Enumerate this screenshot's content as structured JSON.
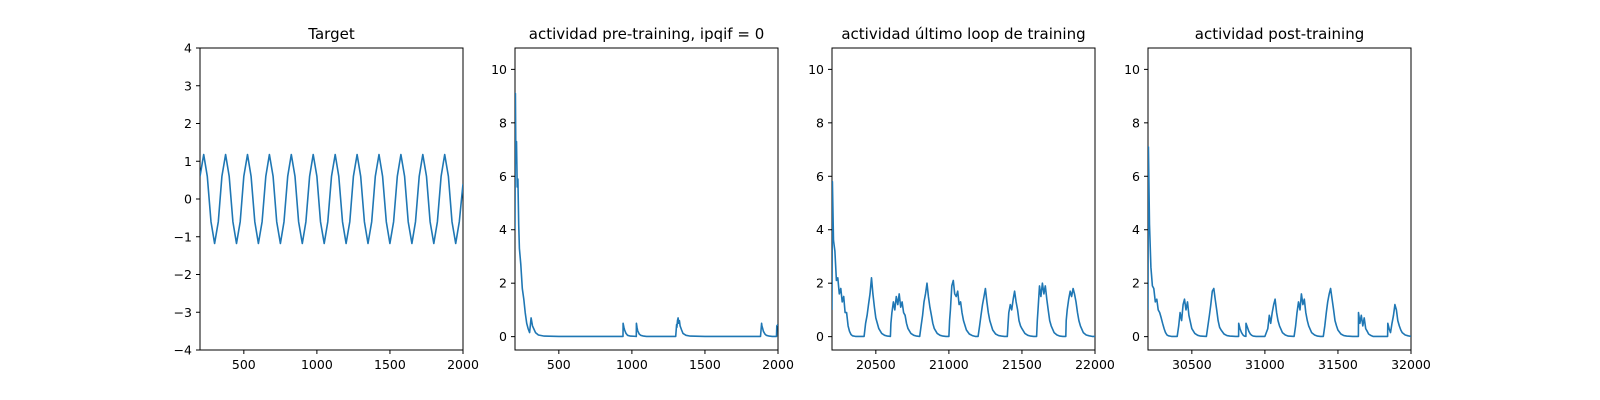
{
  "chart_data": [
    {
      "type": "line",
      "title": "Target",
      "xlim": [
        200,
        2000
      ],
      "ylim": [
        -4,
        4
      ],
      "xticks": [
        500,
        1000,
        1500,
        2000
      ],
      "yticks": [
        -4,
        -3,
        -2,
        -1,
        0,
        1,
        2,
        3,
        4
      ],
      "color": "#1f77b4",
      "series": [
        {
          "x": [
            200,
            225,
            250,
            275,
            300,
            325,
            350,
            375,
            400,
            425,
            450,
            475,
            500,
            525,
            550,
            575,
            600,
            625,
            650,
            675,
            700,
            725,
            750,
            775,
            800,
            825,
            850,
            875,
            900,
            925,
            950,
            975,
            1000,
            1025,
            1050,
            1075,
            1100,
            1125,
            1150,
            1175,
            1200,
            1225,
            1250,
            1275,
            1300,
            1325,
            1350,
            1375,
            1400,
            1425,
            1450,
            1475,
            1500,
            1525,
            1550,
            1575,
            1600,
            1625,
            1650,
            1675,
            1700,
            1725,
            1750,
            1775,
            1800,
            1825,
            1850,
            1875,
            1900,
            1925,
            1950,
            1975,
            2000
          ],
          "y": [
            0.6,
            1.18,
            0.6,
            -0.6,
            -1.18,
            -0.6,
            0.6,
            1.18,
            0.6,
            -0.6,
            -1.18,
            -0.6,
            0.6,
            1.18,
            0.6,
            -0.6,
            -1.18,
            -0.6,
            0.6,
            1.18,
            0.6,
            -0.6,
            -1.18,
            -0.6,
            0.6,
            1.18,
            0.6,
            -0.6,
            -1.18,
            -0.6,
            0.6,
            1.18,
            0.6,
            -0.6,
            -1.18,
            -0.6,
            0.6,
            1.18,
            0.6,
            -0.6,
            -1.18,
            -0.6,
            0.6,
            1.18,
            0.6,
            -0.6,
            -1.18,
            -0.6,
            0.6,
            1.18,
            0.6,
            -0.6,
            -1.18,
            -0.6,
            0.6,
            1.18,
            0.6,
            -0.6,
            -1.18,
            -0.6,
            0.6,
            1.18,
            0.6,
            -0.6,
            -1.18,
            -0.6,
            0.6,
            1.18,
            0.6,
            -0.6,
            -1.18,
            -0.6,
            0.4
          ]
        }
      ]
    },
    {
      "type": "line",
      "title": "actividad pre-training, ipqif = 0",
      "xlim": [
        200,
        2000
      ],
      "ylim": [
        -0.5,
        10.8
      ],
      "xticks": [
        500,
        1000,
        1500,
        2000
      ],
      "yticks": [
        0,
        2,
        4,
        6,
        8,
        10
      ],
      "color": "#1f77b4",
      "series": [
        {
          "x": [
            200,
            203,
            206,
            210,
            215,
            220,
            225,
            230,
            240,
            250,
            260,
            270,
            280,
            290,
            300,
            310,
            320,
            340,
            360,
            400,
            500,
            600,
            700,
            800,
            900,
            939,
            940,
            945,
            950,
            960,
            970,
            990,
            1030,
            1031,
            1035,
            1040,
            1050,
            1060,
            1080,
            1100,
            1200,
            1300,
            1306,
            1308,
            1312,
            1316,
            1320,
            1325,
            1330,
            1340,
            1350,
            1370,
            1400,
            1500,
            1600,
            1700,
            1800,
            1880,
            1888,
            1890,
            1895,
            1900,
            1910,
            1920,
            1940,
            1960,
            1990,
            1992,
            2000
          ],
          "y": [
            4,
            9.1,
            6.5,
            7.3,
            5.6,
            5.9,
            4.2,
            3.3,
            2.7,
            1.8,
            1.4,
            0.9,
            0.5,
            0.3,
            0.15,
            0.7,
            0.4,
            0.15,
            0.06,
            0.02,
            0.01,
            0.01,
            0.01,
            0.01,
            0.01,
            0.01,
            0.5,
            0.35,
            0.25,
            0.12,
            0.05,
            0.02,
            0.01,
            0.5,
            0.35,
            0.22,
            0.1,
            0.05,
            0.02,
            0.01,
            0.01,
            0.01,
            0.45,
            0.35,
            0.6,
            0.7,
            0.5,
            0.6,
            0.4,
            0.25,
            0.12,
            0.05,
            0.02,
            0.01,
            0.01,
            0.01,
            0.01,
            0.01,
            0.5,
            0.4,
            0.3,
            0.2,
            0.1,
            0.05,
            0.02,
            0.01,
            0.01,
            0.4,
            0.45
          ]
        }
      ]
    },
    {
      "type": "line",
      "title": "actividad último loop de training",
      "xlim": [
        20200,
        22000
      ],
      "ylim": [
        -0.5,
        10.8
      ],
      "xticks": [
        20500,
        21000,
        21500,
        22000
      ],
      "yticks": [
        0,
        2,
        4,
        6,
        8,
        10
      ],
      "color": "#1f77b4",
      "series": [
        {
          "x": [
            20200,
            20203,
            20210,
            20220,
            20230,
            20240,
            20250,
            20260,
            20270,
            20280,
            20290,
            20300,
            20310,
            20320,
            20330,
            20340,
            20360,
            20380,
            20400,
            20420,
            20430,
            20440,
            20450,
            20460,
            20470,
            20480,
            20490,
            20500,
            20520,
            20540,
            20560,
            20580,
            20600,
            20603,
            20610,
            20620,
            20630,
            20640,
            20650,
            20660,
            20670,
            20680,
            20690,
            20700,
            20710,
            20720,
            20740,
            20760,
            20780,
            20800,
            20810,
            20820,
            20830,
            20840,
            20850,
            20860,
            20870,
            20880,
            20890,
            20900,
            20920,
            20940,
            20960,
            20980,
            21000,
            21005,
            21010,
            21020,
            21030,
            21040,
            21050,
            21060,
            21070,
            21080,
            21090,
            21100,
            21120,
            21140,
            21160,
            21180,
            21200,
            21210,
            21220,
            21230,
            21240,
            21250,
            21260,
            21270,
            21280,
            21300,
            21320,
            21340,
            21360,
            21380,
            21400,
            21405,
            21410,
            21420,
            21430,
            21440,
            21450,
            21460,
            21470,
            21480,
            21490,
            21500,
            21520,
            21540,
            21560,
            21580,
            21600,
            21605,
            21610,
            21620,
            21630,
            21640,
            21650,
            21660,
            21670,
            21680,
            21690,
            21700,
            21720,
            21740,
            21760,
            21780,
            21800,
            21803,
            21810,
            21820,
            21830,
            21840,
            21850,
            21860,
            21870,
            21880,
            21890,
            21900,
            21920,
            21940,
            21960,
            21980,
            22000
          ],
          "y": [
            1,
            5.8,
            3.6,
            3.2,
            2.1,
            2.2,
            1.6,
            1.8,
            1.3,
            1.5,
            0.9,
            0.9,
            0.4,
            0.2,
            0.08,
            0.03,
            0.01,
            0.01,
            0.01,
            0.01,
            0.5,
            0.8,
            1.2,
            1.6,
            2.2,
            1.6,
            1.1,
            0.7,
            0.3,
            0.12,
            0.05,
            0.02,
            0.01,
            0.5,
            0.9,
            1.3,
            1.0,
            1.5,
            1.2,
            1.6,
            1.1,
            1.3,
            0.9,
            0.8,
            0.5,
            0.3,
            0.12,
            0.05,
            0.02,
            0.01,
            0.4,
            0.8,
            1.3,
            1.6,
            2.0,
            1.5,
            1.1,
            0.8,
            0.5,
            0.3,
            0.12,
            0.05,
            0.02,
            0.01,
            0.01,
            0.6,
            1.0,
            1.9,
            2.1,
            1.6,
            1.5,
            1.7,
            1.2,
            1.3,
            0.9,
            0.6,
            0.25,
            0.1,
            0.04,
            0.01,
            0.01,
            0.4,
            0.8,
            1.2,
            1.5,
            1.8,
            1.3,
            0.9,
            0.6,
            0.25,
            0.1,
            0.04,
            0.02,
            0.01,
            0.01,
            0.5,
            0.9,
            1.2,
            1.0,
            1.4,
            1.7,
            1.3,
            1.0,
            0.6,
            0.4,
            0.3,
            0.12,
            0.05,
            0.02,
            0.01,
            0.01,
            0.6,
            1.0,
            1.9,
            1.5,
            2.0,
            1.6,
            1.9,
            1.4,
            1.0,
            0.6,
            0.4,
            0.15,
            0.06,
            0.02,
            0.01,
            0.01,
            0.6,
            1.0,
            1.4,
            1.7,
            1.5,
            1.8,
            1.6,
            1.3,
            0.9,
            0.6,
            0.4,
            0.15,
            0.06,
            0.03,
            0.01,
            0.01
          ]
        }
      ]
    },
    {
      "type": "line",
      "title": "actividad post-training",
      "xlim": [
        30200,
        32000
      ],
      "ylim": [
        -0.5,
        10.8
      ],
      "xticks": [
        30500,
        31000,
        31500,
        32000
      ],
      "yticks": [
        0,
        2,
        4,
        6,
        8,
        10
      ],
      "color": "#1f77b4",
      "series": [
        {
          "x": [
            30200,
            30203,
            30210,
            30220,
            30230,
            30240,
            30250,
            30260,
            30270,
            30280,
            30290,
            30300,
            30310,
            30320,
            30330,
            30340,
            30360,
            30380,
            30400,
            30410,
            30420,
            30430,
            30440,
            30450,
            30460,
            30470,
            30480,
            30500,
            30520,
            30540,
            30560,
            30600,
            30610,
            30620,
            30630,
            30640,
            30650,
            30660,
            30670,
            30680,
            30690,
            30700,
            30720,
            30740,
            30760,
            30800,
            30820,
            30821,
            30830,
            30840,
            30850,
            30860,
            30870,
            30871,
            30880,
            30890,
            30900,
            30910,
            30920,
            30940,
            30960,
            31000,
            31020,
            31030,
            31040,
            31050,
            31060,
            31070,
            31080,
            31090,
            31100,
            31120,
            31140,
            31160,
            31200,
            31210,
            31220,
            31230,
            31240,
            31250,
            31260,
            31270,
            31280,
            31290,
            31300,
            31320,
            31340,
            31360,
            31380,
            31400,
            31410,
            31420,
            31430,
            31440,
            31450,
            31460,
            31470,
            31480,
            31490,
            31500,
            31520,
            31540,
            31560,
            31600,
            31640,
            31641,
            31650,
            31660,
            31670,
            31680,
            31690,
            31700,
            31710,
            31720,
            31730,
            31740,
            31760,
            31780,
            31800,
            31820,
            31840,
            31841,
            31850,
            31860,
            31870,
            31880,
            31890,
            31900,
            31910,
            31920,
            31930,
            31940,
            31960,
            31980,
            32000
          ],
          "y": [
            1,
            7.1,
            4.2,
            2.6,
            1.9,
            1.8,
            1.3,
            1.4,
            1.0,
            0.9,
            0.7,
            0.5,
            0.3,
            0.15,
            0.06,
            0.03,
            0.01,
            0.01,
            0.01,
            0.4,
            0.9,
            0.6,
            1.2,
            1.4,
            1.0,
            1.3,
            0.8,
            0.3,
            0.12,
            0.05,
            0.02,
            0.01,
            0.4,
            0.8,
            1.2,
            1.7,
            1.8,
            1.4,
            1.0,
            0.6,
            0.35,
            0.25,
            0.1,
            0.04,
            0.02,
            0.01,
            0.01,
            0.5,
            0.3,
            0.15,
            0.06,
            0.02,
            0.01,
            0.5,
            0.35,
            0.2,
            0.1,
            0.05,
            0.02,
            0.01,
            0.01,
            0.01,
            0.3,
            0.8,
            0.5,
            0.9,
            1.2,
            1.4,
            0.9,
            0.6,
            0.4,
            0.15,
            0.06,
            0.02,
            0.01,
            0.4,
            0.9,
            1.3,
            1.0,
            1.6,
            1.2,
            1.4,
            0.9,
            0.6,
            0.4,
            0.15,
            0.06,
            0.02,
            0.01,
            0.01,
            0.4,
            0.9,
            1.3,
            1.6,
            1.8,
            1.4,
            1.0,
            0.6,
            0.4,
            0.25,
            0.1,
            0.04,
            0.02,
            0.01,
            0.01,
            0.9,
            0.5,
            0.8,
            0.4,
            0.7,
            0.3,
            0.2,
            0.1,
            0.06,
            0.03,
            0.01,
            0.01,
            0.01,
            0.01,
            0.01,
            0.01,
            0.5,
            0.3,
            0.15,
            0.5,
            0.8,
            1.2,
            1.0,
            0.6,
            0.4,
            0.25,
            0.15,
            0.06,
            0.03,
            0.01
          ]
        }
      ]
    }
  ]
}
